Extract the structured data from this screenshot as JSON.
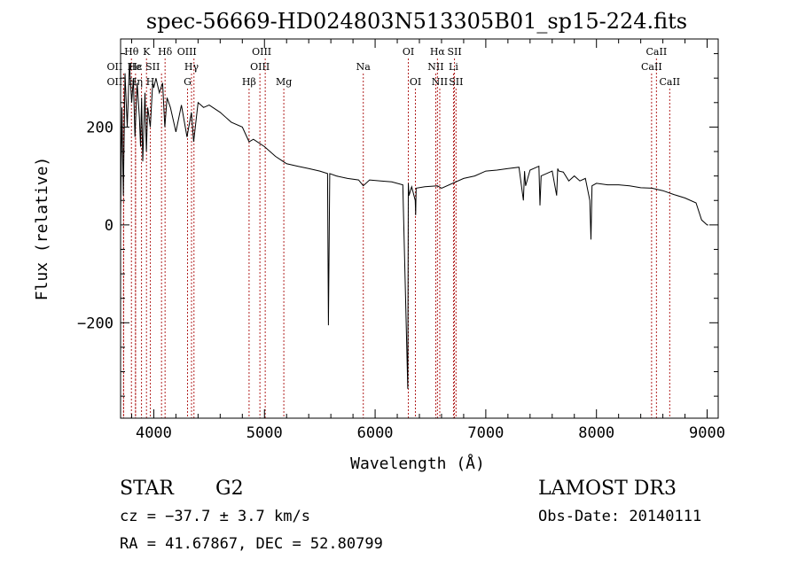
{
  "chart_data": {
    "type": "line",
    "title": "spec-56669-HD024803N513305B01_sp15-224.fits",
    "xlabel": "Wavelength (Å)",
    "ylabel": "Flux (relative)",
    "xlim": [
      3700,
      9100
    ],
    "ylim": [
      -395,
      380
    ],
    "x_ticks": [
      4000,
      5000,
      6000,
      7000,
      8000,
      9000
    ],
    "x_tick_labels": [
      "4000",
      "5000",
      "6000",
      "7000",
      "8000",
      "9000"
    ],
    "y_ticks": [
      -200,
      0,
      200
    ],
    "y_tick_labels": [
      "−200",
      "0",
      "200"
    ],
    "line_color": "#000000",
    "marker_color": "#b22222",
    "series": [
      {
        "name": "Flux",
        "x": [
          3700,
          3712,
          3725,
          3740,
          3760,
          3780,
          3800,
          3815,
          3830,
          3850,
          3870,
          3880,
          3890,
          3900,
          3920,
          3933,
          3945,
          3968,
          3990,
          4000,
          4020,
          4050,
          4080,
          4100,
          4120,
          4150,
          4200,
          4250,
          4300,
          4340,
          4360,
          4400,
          4450,
          4500,
          4600,
          4700,
          4800,
          4861,
          4900,
          5000,
          5100,
          5167,
          5200,
          5300,
          5400,
          5500,
          5570,
          5578,
          5590,
          5650,
          5750,
          5850,
          5893,
          5950,
          6050,
          6150,
          6250,
          6295,
          6300,
          6306,
          6330,
          6362,
          6366,
          6370,
          6450,
          6563,
          6600,
          6700,
          6800,
          6900,
          7000,
          7100,
          7200,
          7300,
          7340,
          7350,
          7360,
          7400,
          7480,
          7490,
          7500,
          7600,
          7640,
          7650,
          7660,
          7700,
          7750,
          7800,
          7850,
          7900,
          7940,
          7950,
          7960,
          8000,
          8100,
          8200,
          8300,
          8400,
          8500,
          8600,
          8700,
          8800,
          8900,
          8950,
          9000,
          9010
        ],
        "y": [
          20,
          240,
          60,
          310,
          200,
          330,
          250,
          300,
          180,
          290,
          220,
          160,
          260,
          130,
          270,
          150,
          240,
          200,
          290,
          280,
          300,
          270,
          290,
          200,
          260,
          240,
          190,
          245,
          180,
          230,
          170,
          250,
          240,
          245,
          230,
          210,
          200,
          170,
          175,
          160,
          140,
          130,
          125,
          120,
          115,
          110,
          105,
          -205,
          105,
          100,
          95,
          92,
          80,
          92,
          90,
          88,
          82,
          -335,
          85,
          60,
          78,
          50,
          20,
          75,
          78,
          80,
          75,
          85,
          95,
          100,
          110,
          112,
          115,
          118,
          50,
          110,
          80,
          112,
          120,
          40,
          100,
          110,
          60,
          115,
          110,
          108,
          90,
          100,
          90,
          95,
          50,
          -30,
          80,
          85,
          82,
          82,
          80,
          76,
          75,
          70,
          62,
          55,
          45,
          10,
          0,
          0
        ]
      }
    ],
    "line_markers": [
      {
        "label": "OII",
        "x": 3727,
        "row": 3,
        "dx": -10
      },
      {
        "label": "Hθ",
        "x": 3798,
        "row": 1,
        "dx": 0
      },
      {
        "label": "OII",
        "x": 3727,
        "row": 2,
        "dx": -10
      },
      {
        "label": "Hε",
        "x": 3835,
        "row": 2,
        "dx": 0
      },
      {
        "label": "He",
        "x": 3889,
        "row": 2,
        "dx": -8
      },
      {
        "label": "Hη",
        "x": 3835,
        "row": 3,
        "dx": 0
      },
      {
        "label": "K",
        "x": 3934,
        "row": 1,
        "dx": 0
      },
      {
        "label": "H",
        "x": 3969,
        "row": 3,
        "dx": 0
      },
      {
        "label": "SII",
        "x": 4070,
        "row": 2,
        "dx": -10
      },
      {
        "label": "Hδ",
        "x": 4102,
        "row": 1,
        "dx": 0
      },
      {
        "label": "OIII",
        "x": 4363,
        "row": 1,
        "dx": -8
      },
      {
        "label": "Hγ",
        "x": 4341,
        "row": 2,
        "dx": 0
      },
      {
        "label": "G",
        "x": 4305,
        "row": 3,
        "dx": 0
      },
      {
        "label": "Hβ",
        "x": 4861,
        "row": 3,
        "dx": 0
      },
      {
        "label": "OIII",
        "x": 5007,
        "row": 1,
        "dx": -4
      },
      {
        "label": "OIII",
        "x": 4959,
        "row": 2,
        "dx": 0
      },
      {
        "label": "Mg",
        "x": 5175,
        "row": 3,
        "dx": 0
      },
      {
        "label": "Na",
        "x": 5893,
        "row": 2,
        "dx": 0
      },
      {
        "label": "OI",
        "x": 6300,
        "row": 1,
        "dx": 0
      },
      {
        "label": "OI",
        "x": 6364,
        "row": 3,
        "dx": 0
      },
      {
        "label": "Hα",
        "x": 6563,
        "row": 1,
        "dx": 0
      },
      {
        "label": "NII",
        "x": 6548,
        "row": 2,
        "dx": 0
      },
      {
        "label": "NII",
        "x": 6584,
        "row": 3,
        "dx": 0
      },
      {
        "label": "SII",
        "x": 6717,
        "row": 1,
        "dx": 0
      },
      {
        "label": "Li",
        "x": 6708,
        "row": 2,
        "dx": 0
      },
      {
        "label": "SII",
        "x": 6731,
        "row": 3,
        "dx": 0
      },
      {
        "label": "CaII",
        "x": 8542,
        "row": 1,
        "dx": 0
      },
      {
        "label": "CaII",
        "x": 8498,
        "row": 2,
        "dx": 0
      },
      {
        "label": "CaII",
        "x": 8662,
        "row": 3,
        "dx": 0
      }
    ]
  },
  "info": {
    "object_class": "STAR",
    "subclass": "G2",
    "redshift": "cz = −37.7 ± 3.7 km/s",
    "coords": "RA =  41.67867, DEC =  52.80799",
    "survey": "LAMOST DR3",
    "obs_date": "Obs-Date: 20140111"
  }
}
